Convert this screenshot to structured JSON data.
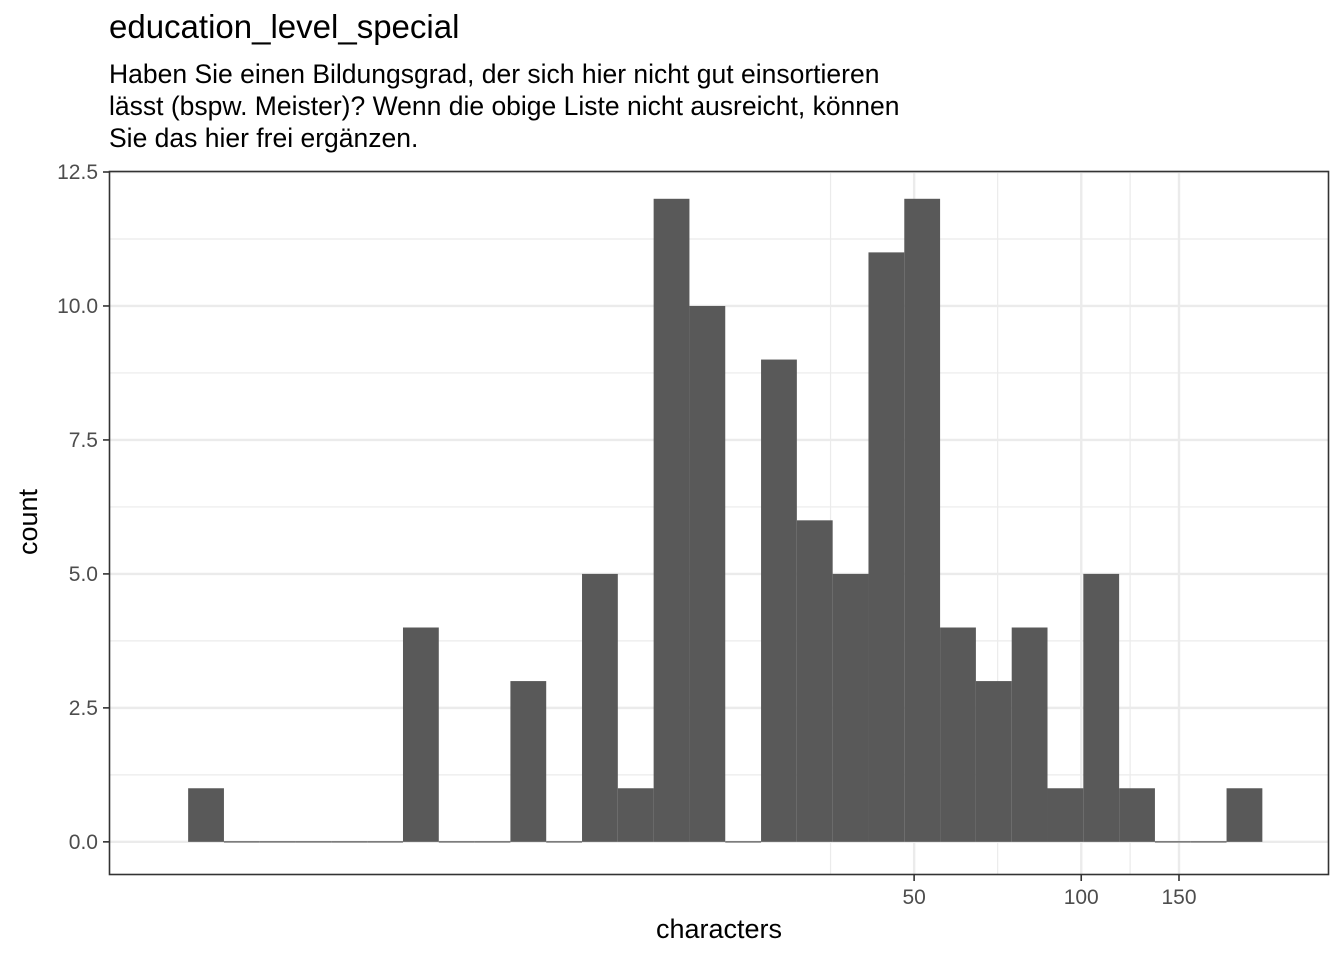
{
  "chart_data": {
    "type": "bar",
    "title": "education_level_special",
    "subtitle_lines": [
      "Haben Sie einen Bildungsgrad, der sich hier nicht gut einsortieren",
      "lässt (bspw. Meister)? Wenn die obige Liste nicht ausreicht, können",
      "Sie das hier frei ergänzen."
    ],
    "xlabel": "characters",
    "ylabel": "count",
    "x_scale": "log10",
    "x_ticks": [
      50,
      100,
      150
    ],
    "x_tick_labels": [
      "50",
      "100",
      "150"
    ],
    "y_ticks": [
      0,
      2.5,
      5,
      7.5,
      10,
      12.5
    ],
    "y_tick_labels": [
      "0.0",
      "2.5",
      "5.0",
      "7.5",
      "10.0",
      "12.5"
    ],
    "ylim": [
      -0.6,
      12.5
    ],
    "grid": true,
    "bin_width_log10": 0.0645,
    "first_bin_center_log10": 0.4235,
    "counts": [
      1,
      0,
      0,
      0,
      0,
      0,
      4,
      0,
      0,
      3,
      0,
      5,
      1,
      12,
      10,
      0,
      9,
      6,
      5,
      11,
      12,
      4,
      3,
      4,
      1,
      5,
      1,
      0,
      0,
      1
    ],
    "bar_color": "#595959"
  }
}
